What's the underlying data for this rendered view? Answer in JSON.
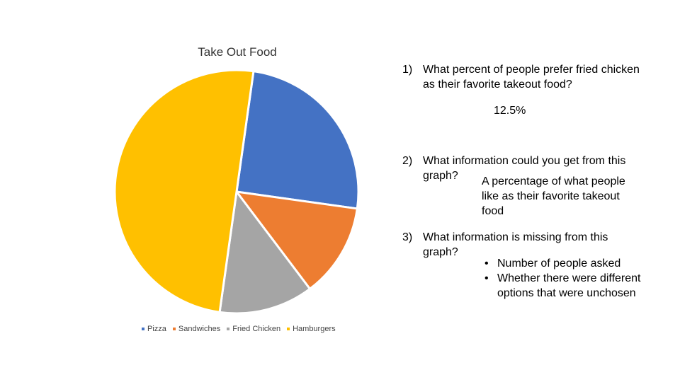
{
  "chart_data": {
    "type": "pie",
    "title": "Take Out Food",
    "categories": [
      "Pizza",
      "Sandwiches",
      "Fried Chicken",
      "Hamburgers"
    ],
    "values": [
      25,
      12.5,
      12.5,
      50
    ],
    "colors": [
      "#4472C4",
      "#ED7D31",
      "#A5A5A5",
      "#FFC000"
    ],
    "legend_position": "bottom",
    "start_angle_deg": 8
  },
  "questions": [
    {
      "number": "1)",
      "lines": [
        "What percent of people prefer fried chicken",
        "as their favorite takeout food?"
      ],
      "answer_lines": [
        "12.5%"
      ]
    },
    {
      "number": "2)",
      "lines": [
        "What information could you get from this",
        "graph?"
      ],
      "answer_lines": [
        "A percentage of what people",
        "like as their favorite takeout",
        "food"
      ]
    },
    {
      "number": "3)",
      "lines": [
        "What information is missing from this",
        "graph?"
      ],
      "bullets": [
        [
          "Number of people asked"
        ],
        [
          "Whether there were different",
          "options that were unchosen"
        ]
      ]
    }
  ]
}
